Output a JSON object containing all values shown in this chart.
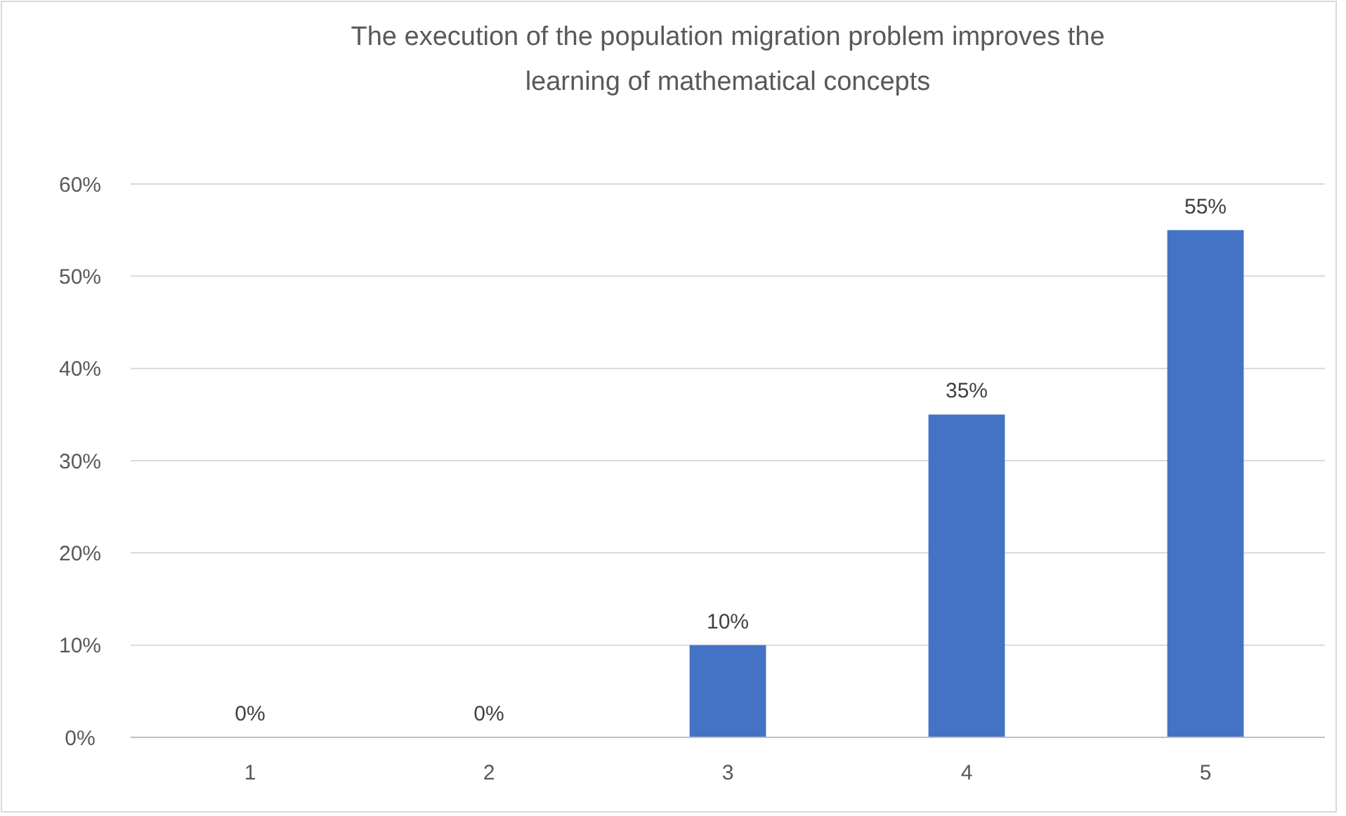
{
  "chart_data": {
    "type": "bar",
    "title": "The execution of the population migration problem improves the learning of mathematical concepts",
    "categories": [
      "1",
      "2",
      "3",
      "4",
      "5"
    ],
    "values": [
      0,
      0,
      10,
      35,
      55
    ],
    "color": "#4472c4",
    "value_labels": [
      "0%",
      "0%",
      "10%",
      "35%",
      "55%"
    ],
    "ylim": [
      0,
      60
    ],
    "yticks": [
      {
        "value": 0,
        "label": "0%"
      },
      {
        "value": 10,
        "label": "10%"
      },
      {
        "value": 20,
        "label": "20%"
      },
      {
        "value": 30,
        "label": "30%"
      },
      {
        "value": 40,
        "label": "40%"
      },
      {
        "value": 50,
        "label": "50%"
      },
      {
        "value": 60,
        "label": "60%"
      }
    ],
    "grid": "y"
  }
}
